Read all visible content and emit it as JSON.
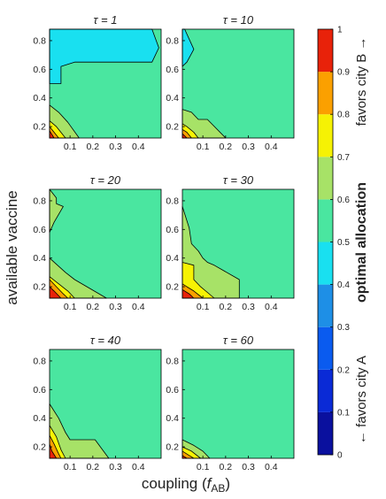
{
  "chart_data": {
    "type": "contour",
    "xlabel": "coupling (",
    "xlabel_sub": "AB",
    "xlabel_var": "f",
    "ylabel": "available vaccine",
    "xlim": [
      0.01,
      0.5
    ],
    "ylim": [
      0.12,
      0.88
    ],
    "xticks": [
      "0.1",
      "0.2",
      "0.3",
      "0.4"
    ],
    "xtick_values": [
      0.1,
      0.2,
      0.3,
      0.4
    ],
    "yticks": [
      "0.2",
      "0.4",
      "0.6",
      "0.8"
    ],
    "ytick_values": [
      0.2,
      0.4,
      0.6,
      0.8
    ],
    "panels": [
      {
        "title": "τ = 1",
        "background_level": 0.55,
        "regions": [
          {
            "level": 0.45,
            "polygon": [
              [
                0.01,
                0.88
              ],
              [
                0.01,
                0.5
              ],
              [
                0.06,
                0.5
              ],
              [
                0.06,
                0.62
              ],
              [
                0.12,
                0.65
              ],
              [
                0.46,
                0.65
              ],
              [
                0.49,
                0.75
              ],
              [
                0.46,
                0.88
              ]
            ]
          },
          {
            "level": 0.65,
            "polygon": [
              [
                0.01,
                0.35
              ],
              [
                0.05,
                0.3
              ],
              [
                0.09,
                0.23
              ],
              [
                0.14,
                0.12
              ],
              [
                0.01,
                0.12
              ]
            ]
          },
          {
            "level": 0.75,
            "polygon": [
              [
                0.01,
                0.24
              ],
              [
                0.04,
                0.2
              ],
              [
                0.08,
                0.12
              ],
              [
                0.01,
                0.12
              ]
            ]
          },
          {
            "level": 0.85,
            "polygon": [
              [
                0.01,
                0.2
              ],
              [
                0.03,
                0.16
              ],
              [
                0.05,
                0.12
              ],
              [
                0.01,
                0.12
              ]
            ]
          },
          {
            "level": 0.95,
            "polygon": [
              [
                0.01,
                0.17
              ],
              [
                0.03,
                0.12
              ],
              [
                0.01,
                0.12
              ]
            ]
          }
        ]
      },
      {
        "title": "τ = 10",
        "background_level": 0.55,
        "regions": [
          {
            "level": 0.45,
            "polygon": [
              [
                0.01,
                0.88
              ],
              [
                0.01,
                0.62
              ],
              [
                0.03,
                0.65
              ],
              [
                0.06,
                0.74
              ],
              [
                0.02,
                0.88
              ]
            ]
          },
          {
            "level": 0.65,
            "polygon": [
              [
                0.01,
                0.32
              ],
              [
                0.05,
                0.3
              ],
              [
                0.08,
                0.25
              ],
              [
                0.12,
                0.25
              ],
              [
                0.2,
                0.12
              ],
              [
                0.01,
                0.12
              ]
            ]
          },
          {
            "level": 0.75,
            "polygon": [
              [
                0.01,
                0.22
              ],
              [
                0.03,
                0.2
              ],
              [
                0.06,
                0.16
              ],
              [
                0.08,
                0.12
              ],
              [
                0.01,
                0.12
              ]
            ]
          },
          {
            "level": 0.85,
            "polygon": [
              [
                0.01,
                0.18
              ],
              [
                0.03,
                0.16
              ],
              [
                0.05,
                0.12
              ],
              [
                0.01,
                0.12
              ]
            ]
          },
          {
            "level": 0.95,
            "polygon": [
              [
                0.01,
                0.15
              ],
              [
                0.03,
                0.12
              ],
              [
                0.01,
                0.12
              ]
            ]
          }
        ]
      },
      {
        "title": "τ = 20",
        "background_level": 0.55,
        "regions": [
          {
            "level": 0.65,
            "polygon": [
              [
                0.01,
                0.88
              ],
              [
                0.01,
                0.58
              ],
              [
                0.03,
                0.65
              ],
              [
                0.07,
                0.76
              ],
              [
                0.04,
                0.78
              ],
              [
                0.04,
                0.82
              ]
            ]
          },
          {
            "level": 0.65,
            "polygon": [
              [
                0.01,
                0.4
              ],
              [
                0.08,
                0.3
              ],
              [
                0.12,
                0.25
              ],
              [
                0.26,
                0.12
              ],
              [
                0.01,
                0.12
              ]
            ]
          },
          {
            "level": 0.75,
            "polygon": [
              [
                0.01,
                0.27
              ],
              [
                0.05,
                0.22
              ],
              [
                0.09,
                0.17
              ],
              [
                0.12,
                0.12
              ],
              [
                0.01,
                0.12
              ]
            ]
          },
          {
            "level": 0.85,
            "polygon": [
              [
                0.01,
                0.25
              ],
              [
                0.04,
                0.2
              ],
              [
                0.07,
                0.15
              ],
              [
                0.09,
                0.12
              ],
              [
                0.01,
                0.12
              ]
            ]
          },
          {
            "level": 0.95,
            "polygon": [
              [
                0.01,
                0.2
              ],
              [
                0.03,
                0.17
              ],
              [
                0.06,
                0.12
              ],
              [
                0.01,
                0.12
              ]
            ]
          }
        ]
      },
      {
        "title": "τ = 30",
        "background_level": 0.55,
        "regions": [
          {
            "level": 0.65,
            "polygon": [
              [
                0.01,
                0.76
              ],
              [
                0.04,
                0.61
              ],
              [
                0.05,
                0.5
              ],
              [
                0.08,
                0.45
              ],
              [
                0.1,
                0.4
              ],
              [
                0.12,
                0.37
              ],
              [
                0.15,
                0.35
              ],
              [
                0.26,
                0.25
              ],
              [
                0.26,
                0.12
              ],
              [
                0.01,
                0.12
              ]
            ]
          },
          {
            "level": 0.75,
            "polygon": [
              [
                0.01,
                0.37
              ],
              [
                0.06,
                0.35
              ],
              [
                0.06,
                0.25
              ],
              [
                0.09,
                0.2
              ],
              [
                0.12,
                0.16
              ],
              [
                0.15,
                0.12
              ],
              [
                0.01,
                0.12
              ]
            ]
          },
          {
            "level": 0.85,
            "polygon": [
              [
                0.01,
                0.22
              ],
              [
                0.03,
                0.2
              ],
              [
                0.06,
                0.17
              ],
              [
                0.1,
                0.12
              ],
              [
                0.01,
                0.12
              ]
            ]
          },
          {
            "level": 0.95,
            "polygon": [
              [
                0.01,
                0.18
              ],
              [
                0.04,
                0.15
              ],
              [
                0.06,
                0.12
              ],
              [
                0.01,
                0.12
              ]
            ]
          }
        ]
      },
      {
        "title": "τ = 40",
        "background_level": 0.55,
        "regions": [
          {
            "level": 0.65,
            "polygon": [
              [
                0.01,
                0.5
              ],
              [
                0.05,
                0.4
              ],
              [
                0.08,
                0.3
              ],
              [
                0.1,
                0.25
              ],
              [
                0.21,
                0.25
              ],
              [
                0.27,
                0.12
              ],
              [
                0.01,
                0.12
              ]
            ]
          },
          {
            "level": 0.75,
            "polygon": [
              [
                0.01,
                0.35
              ],
              [
                0.04,
                0.27
              ],
              [
                0.06,
                0.18
              ],
              [
                0.08,
                0.12
              ],
              [
                0.01,
                0.12
              ]
            ]
          },
          {
            "level": 0.85,
            "polygon": [
              [
                0.01,
                0.28
              ],
              [
                0.03,
                0.22
              ],
              [
                0.05,
                0.15
              ],
              [
                0.06,
                0.12
              ],
              [
                0.01,
                0.12
              ]
            ]
          },
          {
            "level": 0.95,
            "polygon": [
              [
                0.01,
                0.22
              ],
              [
                0.02,
                0.17
              ],
              [
                0.04,
                0.12
              ],
              [
                0.01,
                0.12
              ]
            ]
          }
        ]
      },
      {
        "title": "τ = 60",
        "background_level": 0.55,
        "regions": [
          {
            "level": 0.65,
            "polygon": [
              [
                0.01,
                0.25
              ],
              [
                0.06,
                0.21
              ],
              [
                0.1,
                0.17
              ],
              [
                0.13,
                0.12
              ],
              [
                0.01,
                0.12
              ]
            ]
          },
          {
            "level": 0.75,
            "polygon": [
              [
                0.01,
                0.2
              ],
              [
                0.05,
                0.17
              ],
              [
                0.09,
                0.12
              ],
              [
                0.01,
                0.12
              ]
            ]
          },
          {
            "level": 0.85,
            "polygon": [
              [
                0.01,
                0.17
              ],
              [
                0.04,
                0.14
              ],
              [
                0.06,
                0.12
              ],
              [
                0.01,
                0.12
              ]
            ]
          },
          {
            "level": 0.95,
            "polygon": [
              [
                0.01,
                0.14
              ],
              [
                0.03,
                0.12
              ],
              [
                0.01,
                0.12
              ]
            ]
          }
        ]
      }
    ],
    "colorbar": {
      "title": "optimal allocation",
      "top_label": "favors city B →",
      "bottom_label": "← favors city A",
      "range": [
        0,
        1
      ],
      "ticks": [
        "0",
        "0.1",
        "0.2",
        "0.3",
        "0.4",
        "0.5",
        "0.6",
        "0.7",
        "0.8",
        "0.9",
        "1"
      ],
      "colors": [
        "#1a0aa8",
        "#0b24d8",
        "#0a4ef0",
        "#0c7cf5",
        "#18b4f0",
        "#00e6ff",
        "#49e8a5",
        "#8ee07c",
        "#c3e84c",
        "#f4f000",
        "#ffcc00",
        "#ff9a00",
        "#ff6a00",
        "#ff2200",
        "#d41a00"
      ],
      "bands": [
        {
          "from": 0.0,
          "to": 0.1,
          "color": "#0a109e"
        },
        {
          "from": 0.1,
          "to": 0.2,
          "color": "#0a2ad6"
        },
        {
          "from": 0.2,
          "to": 0.3,
          "color": "#0a5bef"
        },
        {
          "from": 0.3,
          "to": 0.4,
          "color": "#1e8fe6"
        },
        {
          "from": 0.4,
          "to": 0.5,
          "color": "#19e0f0"
        },
        {
          "from": 0.5,
          "to": 0.6,
          "color": "#4ae6a0"
        },
        {
          "from": 0.6,
          "to": 0.7,
          "color": "#a7e267"
        },
        {
          "from": 0.7,
          "to": 0.8,
          "color": "#f6f204"
        },
        {
          "from": 0.8,
          "to": 0.9,
          "color": "#fba000"
        },
        {
          "from": 0.9,
          "to": 1.0,
          "color": "#e8220a"
        }
      ]
    }
  }
}
